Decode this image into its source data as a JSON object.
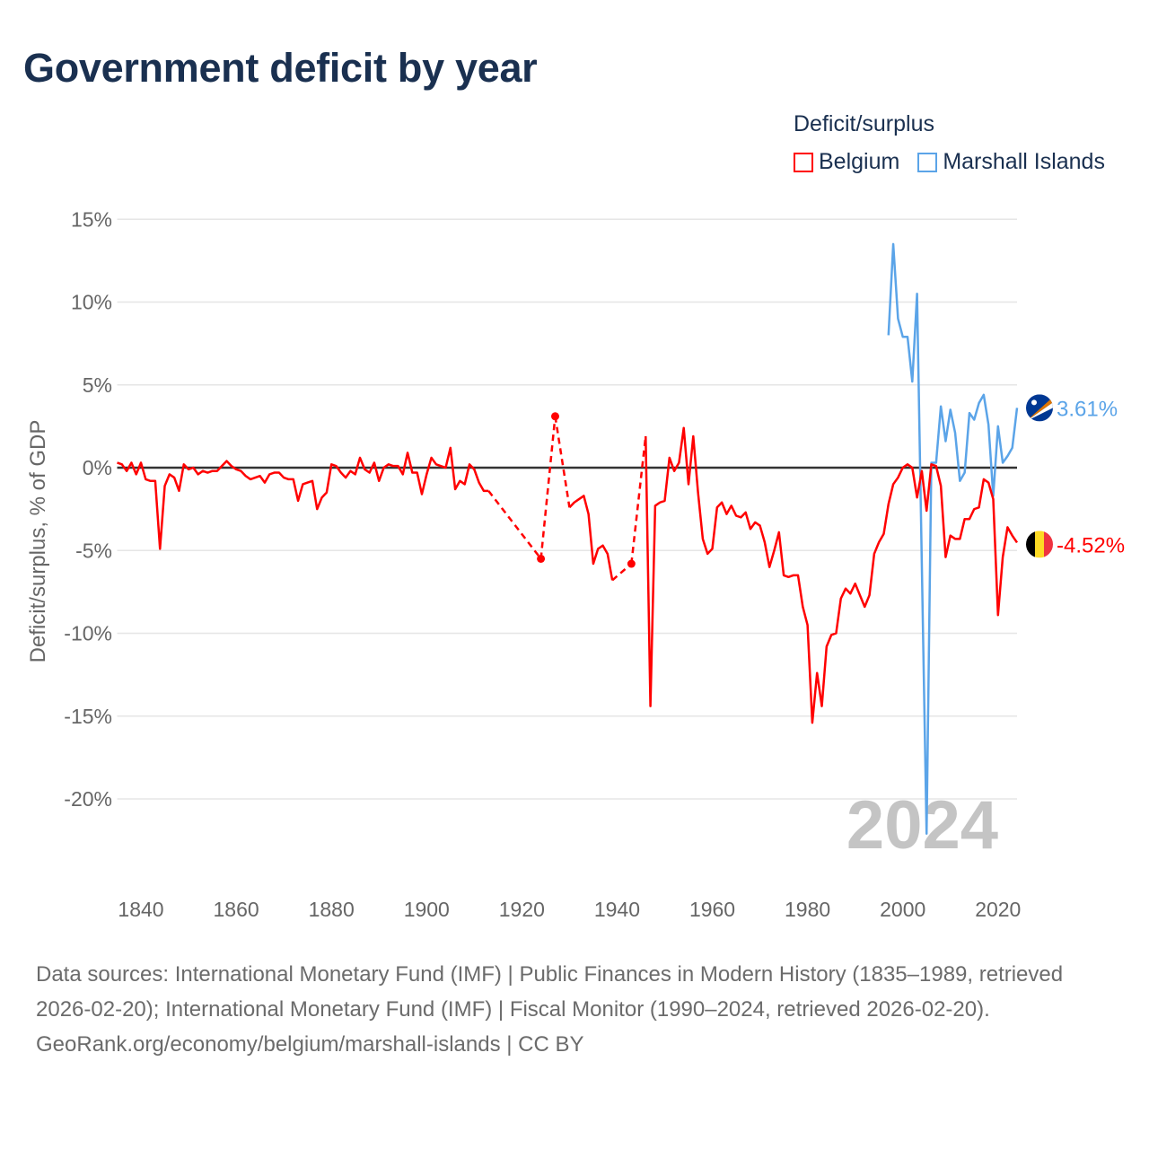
{
  "title": "Government deficit by year",
  "legend": {
    "title": "Deficit/surplus",
    "items": [
      {
        "name": "Belgium",
        "color": "#ff0000"
      },
      {
        "name": "Marshall Islands",
        "color": "#5ba4e8"
      }
    ]
  },
  "chart_data": {
    "type": "line",
    "title": "Government deficit by year",
    "ylabel": "Deficit/surplus, % of GDP",
    "xlabel": "",
    "xlim": [
      1835,
      2024
    ],
    "ylim": [
      -24,
      15
    ],
    "y_ticks": [
      15,
      10,
      5,
      0,
      -5,
      -10,
      -15,
      -20
    ],
    "y_tick_labels": [
      "15%",
      "10%",
      "5%",
      "0%",
      "-5%",
      "-10%",
      "-15%",
      "-20%"
    ],
    "x_ticks": [
      1840,
      1860,
      1880,
      1900,
      1920,
      1940,
      1960,
      1980,
      2000,
      2020
    ],
    "x_tick_labels": [
      "1840",
      "1860",
      "1880",
      "1900",
      "1920",
      "1940",
      "1960",
      "1980",
      "2000",
      "2020"
    ],
    "watermark_year": "2024",
    "grid": true,
    "legend_position": "top-right",
    "series": [
      {
        "name": "Belgium",
        "color": "#ff0000",
        "end_label": "-4.52%",
        "flag": "belgium-flag",
        "points": [
          [
            1835,
            0.3
          ],
          [
            1836,
            0.2
          ],
          [
            1837,
            -0.2
          ],
          [
            1838,
            0.3
          ],
          [
            1839,
            -0.4
          ],
          [
            1840,
            0.3
          ],
          [
            1841,
            -0.7
          ],
          [
            1842,
            -0.8
          ],
          [
            1843,
            -0.8
          ],
          [
            1844,
            -4.9
          ],
          [
            1845,
            -1.1
          ],
          [
            1846,
            -0.4
          ],
          [
            1847,
            -0.6
          ],
          [
            1848,
            -1.4
          ],
          [
            1849,
            0.2
          ],
          [
            1850,
            -0.1
          ],
          [
            1851,
            0.0
          ],
          [
            1852,
            -0.4
          ],
          [
            1853,
            -0.2
          ],
          [
            1854,
            -0.3
          ],
          [
            1855,
            -0.2
          ],
          [
            1856,
            -0.2
          ],
          [
            1857,
            0.1
          ],
          [
            1858,
            0.4
          ],
          [
            1859,
            0.1
          ],
          [
            1860,
            -0.1
          ],
          [
            1861,
            -0.2
          ],
          [
            1862,
            -0.5
          ],
          [
            1863,
            -0.7
          ],
          [
            1864,
            -0.6
          ],
          [
            1865,
            -0.5
          ],
          [
            1866,
            -0.9
          ],
          [
            1867,
            -0.4
          ],
          [
            1868,
            -0.3
          ],
          [
            1869,
            -0.3
          ],
          [
            1870,
            -0.6
          ],
          [
            1871,
            -0.7
          ],
          [
            1872,
            -0.7
          ],
          [
            1873,
            -2.0
          ],
          [
            1874,
            -1.0
          ],
          [
            1875,
            -0.9
          ],
          [
            1876,
            -0.8
          ],
          [
            1877,
            -2.5
          ],
          [
            1878,
            -1.8
          ],
          [
            1879,
            -1.5
          ],
          [
            1880,
            0.2
          ],
          [
            1881,
            0.1
          ],
          [
            1882,
            -0.3
          ],
          [
            1883,
            -0.6
          ],
          [
            1884,
            -0.2
          ],
          [
            1885,
            -0.4
          ],
          [
            1886,
            0.6
          ],
          [
            1887,
            -0.1
          ],
          [
            1888,
            -0.3
          ],
          [
            1889,
            0.3
          ],
          [
            1890,
            -0.8
          ],
          [
            1891,
            0.0
          ],
          [
            1892,
            0.2
          ],
          [
            1893,
            0.1
          ],
          [
            1894,
            0.1
          ],
          [
            1895,
            -0.4
          ],
          [
            1896,
            0.9
          ],
          [
            1897,
            -0.3
          ],
          [
            1898,
            -0.3
          ],
          [
            1899,
            -1.6
          ],
          [
            1900,
            -0.4
          ],
          [
            1901,
            0.6
          ],
          [
            1902,
            0.2
          ],
          [
            1903,
            0.1
          ],
          [
            1904,
            0.0
          ],
          [
            1905,
            1.2
          ],
          [
            1906,
            -1.3
          ],
          [
            1907,
            -0.8
          ],
          [
            1908,
            -1.0
          ],
          [
            1909,
            0.2
          ],
          [
            1910,
            -0.1
          ],
          [
            1911,
            -0.9
          ],
          [
            1912,
            -1.4
          ],
          [
            1913,
            -1.4
          ],
          [
            1924,
            -5.5
          ],
          [
            1927,
            3.1
          ],
          [
            1930,
            -2.4
          ],
          [
            1931,
            -2.1
          ],
          [
            1932,
            -1.9
          ],
          [
            1933,
            -1.7
          ],
          [
            1934,
            -2.8
          ],
          [
            1935,
            -5.8
          ],
          [
            1936,
            -4.9
          ],
          [
            1937,
            -4.7
          ],
          [
            1938,
            -5.2
          ],
          [
            1939,
            -6.8
          ],
          [
            1943,
            -5.8
          ],
          [
            1946,
            1.9
          ],
          [
            1947,
            -14.4
          ],
          [
            1948,
            -2.3
          ],
          [
            1949,
            -2.1
          ],
          [
            1950,
            -2.0
          ],
          [
            1951,
            0.6
          ],
          [
            1952,
            -0.2
          ],
          [
            1953,
            0.3
          ],
          [
            1954,
            2.4
          ],
          [
            1955,
            -1.0
          ],
          [
            1956,
            1.9
          ],
          [
            1957,
            -1.5
          ],
          [
            1958,
            -4.3
          ],
          [
            1959,
            -5.2
          ],
          [
            1960,
            -4.9
          ],
          [
            1961,
            -2.4
          ],
          [
            1962,
            -2.1
          ],
          [
            1963,
            -2.8
          ],
          [
            1964,
            -2.3
          ],
          [
            1965,
            -2.9
          ],
          [
            1966,
            -3.0
          ],
          [
            1967,
            -2.7
          ],
          [
            1968,
            -3.7
          ],
          [
            1969,
            -3.3
          ],
          [
            1970,
            -3.5
          ],
          [
            1971,
            -4.5
          ],
          [
            1972,
            -6.0
          ],
          [
            1973,
            -5.0
          ],
          [
            1974,
            -3.9
          ],
          [
            1975,
            -6.5
          ],
          [
            1976,
            -6.6
          ],
          [
            1977,
            -6.5
          ],
          [
            1978,
            -6.5
          ],
          [
            1979,
            -8.4
          ],
          [
            1980,
            -9.5
          ],
          [
            1981,
            -15.4
          ],
          [
            1982,
            -12.4
          ],
          [
            1983,
            -14.4
          ],
          [
            1984,
            -10.8
          ],
          [
            1985,
            -10.1
          ],
          [
            1986,
            -10.0
          ],
          [
            1987,
            -7.9
          ],
          [
            1988,
            -7.3
          ],
          [
            1989,
            -7.6
          ],
          [
            1990,
            -7.0
          ],
          [
            1991,
            -7.7
          ],
          [
            1992,
            -8.4
          ],
          [
            1993,
            -7.7
          ],
          [
            1994,
            -5.2
          ],
          [
            1995,
            -4.5
          ],
          [
            1996,
            -4.0
          ],
          [
            1997,
            -2.2
          ],
          [
            1998,
            -1.0
          ],
          [
            1999,
            -0.6
          ],
          [
            2000,
            0.0
          ],
          [
            2001,
            0.2
          ],
          [
            2002,
            0.0
          ],
          [
            2003,
            -1.8
          ],
          [
            2004,
            -0.2
          ],
          [
            2005,
            -2.6
          ],
          [
            2006,
            0.2
          ],
          [
            2007,
            0.1
          ],
          [
            2008,
            -1.1
          ],
          [
            2009,
            -5.4
          ],
          [
            2010,
            -4.1
          ],
          [
            2011,
            -4.3
          ],
          [
            2012,
            -4.3
          ],
          [
            2013,
            -3.1
          ],
          [
            2014,
            -3.1
          ],
          [
            2015,
            -2.5
          ],
          [
            2016,
            -2.4
          ],
          [
            2017,
            -0.7
          ],
          [
            2018,
            -0.9
          ],
          [
            2019,
            -1.9
          ],
          [
            2020,
            -8.9
          ],
          [
            2021,
            -5.4
          ],
          [
            2022,
            -3.6
          ],
          [
            2023,
            -4.1
          ],
          [
            2024,
            -4.52
          ]
        ]
      },
      {
        "name": "Marshall Islands",
        "color": "#5ba4e8",
        "end_label": "3.61%",
        "flag": "marshall-islands-flag",
        "points": [
          [
            1997,
            8.0
          ],
          [
            1998,
            13.5
          ],
          [
            1999,
            9.0
          ],
          [
            2000,
            7.9
          ],
          [
            2001,
            7.9
          ],
          [
            2002,
            5.2
          ],
          [
            2003,
            10.5
          ],
          [
            2004,
            -5.8
          ],
          [
            2005,
            -22.1
          ],
          [
            2006,
            0.3
          ],
          [
            2007,
            0.3
          ],
          [
            2008,
            3.7
          ],
          [
            2009,
            1.6
          ],
          [
            2010,
            3.5
          ],
          [
            2011,
            2.1
          ],
          [
            2012,
            -0.8
          ],
          [
            2013,
            -0.3
          ],
          [
            2014,
            3.3
          ],
          [
            2015,
            2.9
          ],
          [
            2016,
            3.9
          ],
          [
            2017,
            4.4
          ],
          [
            2018,
            2.6
          ],
          [
            2019,
            -1.7
          ],
          [
            2020,
            2.5
          ],
          [
            2021,
            0.3
          ],
          [
            2022,
            0.7
          ],
          [
            2023,
            1.2
          ],
          [
            2024,
            3.61
          ]
        ]
      }
    ]
  },
  "footer": {
    "sources": "Data sources: International Monetary Fund (IMF) | Public Finances in Modern History (1835–1989, retrieved 2026-02-20); International Monetary Fund (IMF) | Fiscal Monitor (1990–2024, retrieved 2026-02-20).",
    "credit": "GeoRank.org/economy/belgium/marshall-islands | CC BY"
  }
}
